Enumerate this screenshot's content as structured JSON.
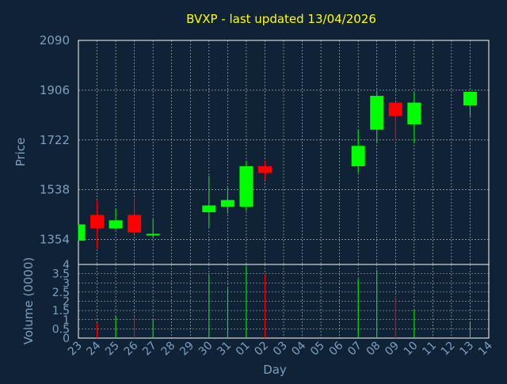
{
  "chart_data": {
    "type": "candlestick",
    "title": "BVXP - last updated 13/04/2026",
    "xlabel": "Day",
    "price_panel": {
      "ylabel": "Price",
      "ylim": [
        1262,
        2090
      ],
      "ytick_labels": [
        "2090",
        "1906",
        "1722",
        "1538",
        "1354"
      ],
      "ytick_values": [
        2090,
        1906,
        1722,
        1538,
        1354
      ],
      "grid": true
    },
    "volume_panel": {
      "ylabel": "Volume (0000)",
      "ylim": [
        0,
        4
      ],
      "ytick_labels": [
        "4",
        "3.5",
        "3",
        "2.5",
        "2",
        "1.5",
        "1",
        "0.5",
        "0"
      ],
      "ytick_values": [
        4,
        3.5,
        3,
        2.5,
        2,
        1.5,
        1,
        0.5,
        0
      ],
      "grid": true
    },
    "x_labels": [
      "23",
      "24",
      "25",
      "26",
      "27",
      "28",
      "29",
      "30",
      "31",
      "01",
      "02",
      "03",
      "04",
      "05",
      "06",
      "07",
      "08",
      "09",
      "10",
      "11",
      "12",
      "13",
      "14"
    ],
    "candles": [
      {
        "day": "23",
        "open": 1350,
        "high": 1410,
        "low": 1350,
        "close": 1410,
        "volume": 0
      },
      {
        "day": "24",
        "open": 1445,
        "high": 1500,
        "low": 1320,
        "close": 1395,
        "volume": 0.8
      },
      {
        "day": "25",
        "open": 1395,
        "high": 1470,
        "low": 1390,
        "close": 1425,
        "volume": 1.2
      },
      {
        "day": "26",
        "open": 1445,
        "high": 1505,
        "low": 1375,
        "close": 1380,
        "volume": 1.2
      },
      {
        "day": "27",
        "open": 1370,
        "high": 1430,
        "low": 1360,
        "close": 1375,
        "volume": 1.0
      },
      {
        "day": "30",
        "open": 1455,
        "high": 1590,
        "low": 1400,
        "close": 1480,
        "volume": 3.4
      },
      {
        "day": "31",
        "open": 1475,
        "high": 1545,
        "low": 1450,
        "close": 1500,
        "volume": 2.7
      },
      {
        "day": "01",
        "open": 1475,
        "high": 1645,
        "low": 1460,
        "close": 1625,
        "volume": 3.9
      },
      {
        "day": "02",
        "open": 1625,
        "high": 1645,
        "low": 1575,
        "close": 1600,
        "volume": 3.5
      },
      {
        "day": "07",
        "open": 1625,
        "high": 1760,
        "low": 1600,
        "close": 1700,
        "volume": 3.2
      },
      {
        "day": "08",
        "open": 1760,
        "high": 1900,
        "low": 1710,
        "close": 1885,
        "volume": 3.7
      },
      {
        "day": "09",
        "open": 1860,
        "high": 1860,
        "low": 1720,
        "close": 1810,
        "volume": 2.3
      },
      {
        "day": "10",
        "open": 1780,
        "high": 1900,
        "low": 1710,
        "close": 1860,
        "volume": 1.5
      },
      {
        "day": "13",
        "open": 1850,
        "high": 1900,
        "low": 1810,
        "close": 1900,
        "volume": 0.9
      }
    ],
    "up_color": "#00ff00",
    "down_color": "#ff0000",
    "frame_color": "#ffffff",
    "background": "#0f2236",
    "text_color": "#7f9fbf",
    "title_color": "#ffff00"
  }
}
